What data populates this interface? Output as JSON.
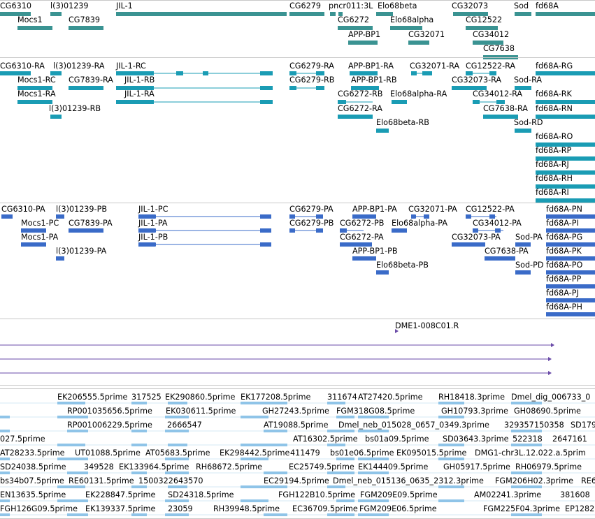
{
  "colors": {
    "gene_track": "#3a9392",
    "transcript_track": "#1a9cb4",
    "protein_track": "#3a6bc8",
    "probe_track": "#6a4ba8",
    "est_track": "#8fc4e8",
    "panel_divider": "#c8c8c8"
  },
  "panels": {
    "genes": {
      "labels": [
        "CG6310",
        "l(3)01239",
        "JIL-1",
        "CG6279",
        "pncr011:3L",
        "Elo68beta",
        "CG32073",
        "Sod",
        "fd68A",
        "Mocs1",
        "CG7839",
        "CG6272",
        "Elo68alpha",
        "CG12522",
        "APP-BP1",
        "CG32071",
        "CG34012",
        "CG7638"
      ]
    },
    "transcripts": {
      "labels": [
        "CG6310-RA",
        "l(3)01239-RA",
        "JIL-1-RC",
        "CG6279-RA",
        "APP-BP1-RA",
        "CG32071-RA",
        "CG12522-RA",
        "fd68A-RG",
        "Mocs1-RC",
        "CG7839-RA",
        "JIL-1-RB",
        "CG6279-RB",
        "APP-BP1-RB",
        "CG32073-RA",
        "Sod-RA",
        "Mocs1-RA",
        "JIL-1-RA",
        "CG6272-RB",
        "Elo68alpha-RA",
        "CG34012-RA",
        "fd68A-RK",
        "l(3)01239-RB",
        "CG6272-RA",
        "CG7638-RA",
        "fd68A-RN",
        "Elo68beta-RB",
        "Sod-RD",
        "fd68A-RO",
        "fd68A-RP",
        "fd68A-RJ",
        "fd68A-RH",
        "fd68A-RI"
      ]
    },
    "proteins": {
      "labels": [
        "CG6310-PA",
        "l(3)01239-PB",
        "JIL-1-PC",
        "CG6279-PA",
        "APP-BP1-PA",
        "CG32071-PA",
        "CG12522-PA",
        "fd68A-PN",
        "Mocs1-PC",
        "CG7839-PA",
        "JIL-1-PA",
        "CG6279-PB",
        "CG6272-PB",
        "Elo68alpha-PA",
        "CG34012-PA",
        "fd68A-PI",
        "Mocs1-PA",
        "JIL-1-PB",
        "CG6272-PA",
        "CG32073-PA",
        "Sod-PA",
        "fd68A-PG",
        "l(3)01239-PA",
        "APP-BP1-PB",
        "CG7638-PA",
        "fd68A-PK",
        "Elo68beta-PB",
        "Sod-PD",
        "fd68A-PO",
        "fd68A-PP",
        "fd68A-PJ",
        "fd68A-PH"
      ]
    },
    "probes": {
      "labels": [
        "DME1-008C01.R"
      ]
    },
    "ests": {
      "labels": [
        "EK206555.5prime",
        "317525",
        "EK290860.5prime",
        "EK177208.5prime",
        "311674",
        "AT27420.5prime",
        "RH18418.3prime",
        "Dmel_dig_006733_0",
        "RP001035656.5prime",
        "EK030611.5prime",
        "GH27243.5prime",
        "FGM318G08.5prime",
        "GH10793.3prime",
        "GH08690.5prime",
        "RP001006229.5prime",
        "2666547",
        "AT19088.5prime",
        "Dmel_neb_015028_0657_0349.3prime",
        "329357",
        "150358",
        "SD179",
        "027.5prime",
        "AT16302.5prime",
        "bs01a09.5prime",
        "SD03643.3prime",
        "522318",
        "2647161",
        "AT28233.5prime",
        "UT01088.5prime",
        "AT05683.5prime",
        "EK298442.5prime",
        "411479",
        "bs01e06.5prime",
        "EK095015.5prime",
        "DMG1-chr3L.12.022.a.5prim",
        "SD24038.5prime",
        "349528",
        "EK133964.5prime",
        "RH68672.5prime",
        "EC25749.5prime",
        "EK144409.5prime",
        "GH05917.5prime",
        "RH06979.5prime",
        "bs34b07.5prime",
        "RE60131.5prime",
        "1500322643570",
        "EC29194.5prime",
        "Dmel_neb_015136_0635_2312.3prime",
        "FGM206H02.3prime",
        "RE6",
        "EN13635.5prime",
        "EK228847.5prime",
        "SD24318.5prime",
        "FGH122B10.5prime",
        "FGM209E09.5prime",
        "AM02241.3prime",
        "381608",
        "FGH126G09.5prime",
        "EK139337.5prime",
        "23059",
        "RH39948.5prime",
        "EC36709.5prime",
        "FGM209E06.5prime",
        "FGM225F04.3prime",
        "EP1282"
      ]
    }
  }
}
